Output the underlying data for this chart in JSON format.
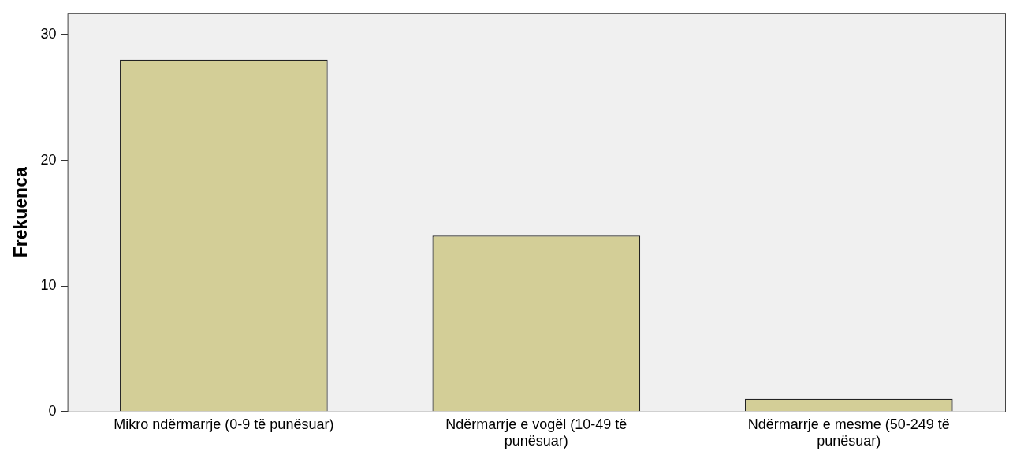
{
  "chart_data": {
    "type": "bar",
    "ylabel": "Frekuenca",
    "categories": [
      "Mikro ndërmarrje (0-9 të punësuar)",
      "Ndërmarrje e vogël (10-49 të punësuar)",
      "Ndërmarrje e mesme (50-249 të punësuar)"
    ],
    "values": [
      28,
      14,
      1
    ],
    "color": "#d3ce97",
    "ylim": [
      0,
      31.7
    ],
    "yticks": [
      0,
      10,
      20,
      30
    ],
    "grid": false,
    "legend": false
  }
}
